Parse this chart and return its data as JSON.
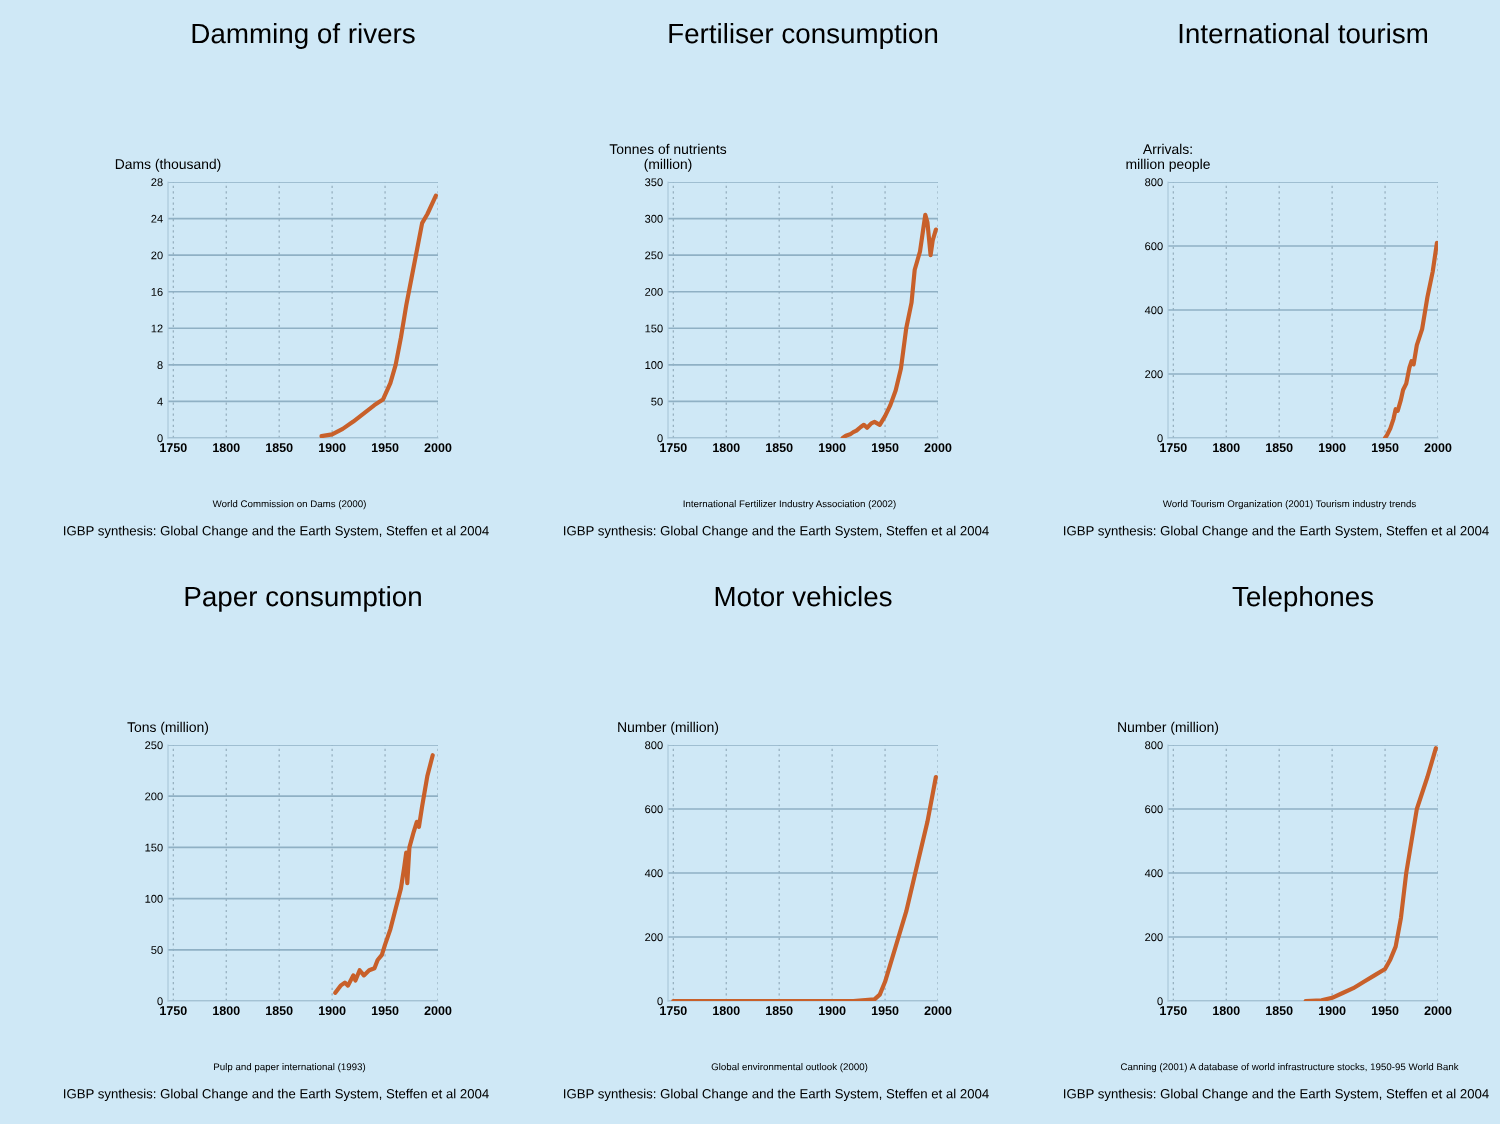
{
  "chart_data": [
    {
      "type": "line",
      "title": "Damming of rivers",
      "ylabel": "Dams (thousand)",
      "x": [
        1890,
        1900,
        1910,
        1920,
        1930,
        1940,
        1948,
        1955,
        1960,
        1965,
        1970,
        1975,
        1980,
        1985,
        1990,
        1998
      ],
      "series": [
        {
          "color": "#c8602a",
          "values": [
            0.2,
            0.4,
            1,
            1.8,
            2.7,
            3.6,
            4.2,
            6,
            8,
            11,
            14.5,
            17.5,
            20.5,
            23.5,
            24.5,
            26.5
          ]
        }
      ],
      "xlim": [
        1745,
        2000
      ],
      "xticks": [
        1750,
        1800,
        1850,
        1900,
        1950,
        2000
      ],
      "ylim": [
        0,
        28
      ],
      "yticks": [
        0,
        4,
        8,
        12,
        16,
        20,
        24,
        28
      ],
      "grid": true,
      "annotations": [
        "World Commission on Dams (2000)",
        "IGBP synthesis: Global Change and the Earth System, Steffen et al 2004"
      ]
    },
    {
      "type": "line",
      "title": "Fertiliser consumption",
      "ylabel": "Tonnes of nutrients\n(million)",
      "x": [
        1910,
        1913,
        1917,
        1920,
        1923,
        1927,
        1930,
        1933,
        1937,
        1940,
        1945,
        1950,
        1955,
        1960,
        1965,
        1970,
        1975,
        1978,
        1980,
        1983,
        1985,
        1988,
        1990,
        1993,
        1995,
        1998
      ],
      "series": [
        {
          "color": "#c8602a",
          "values": [
            0,
            3,
            5,
            8,
            10,
            15,
            18,
            14,
            20,
            22,
            18,
            30,
            45,
            65,
            95,
            150,
            185,
            230,
            240,
            255,
            275,
            305,
            295,
            250,
            270,
            285
          ]
        }
      ],
      "xlim": [
        1745,
        2000
      ],
      "xticks": [
        1750,
        1800,
        1850,
        1900,
        1950,
        2000
      ],
      "ylim": [
        0,
        350
      ],
      "yticks": [
        0,
        50,
        100,
        150,
        200,
        250,
        300,
        350
      ],
      "grid": true,
      "annotations": [
        "International Fertilizer Industry Association (2002)",
        "IGBP synthesis: Global Change and the Earth System, Steffen et al 2004"
      ]
    },
    {
      "type": "line",
      "title": "International tourism",
      "ylabel": "Arrivals:\nmillion people",
      "x": [
        1950,
        1952,
        1955,
        1958,
        1960,
        1962,
        1965,
        1967,
        1970,
        1973,
        1975,
        1977,
        1980,
        1985,
        1990,
        1995,
        1999
      ],
      "series": [
        {
          "color": "#c8602a",
          "values": [
            0,
            10,
            30,
            60,
            90,
            85,
            120,
            150,
            170,
            220,
            240,
            230,
            290,
            340,
            440,
            520,
            610
          ]
        }
      ],
      "xlim": [
        1745,
        2000
      ],
      "xticks": [
        1750,
        1800,
        1850,
        1900,
        1950,
        2000
      ],
      "ylim": [
        0,
        800
      ],
      "yticks": [
        0,
        200,
        400,
        600,
        800
      ],
      "grid": true,
      "annotations": [
        "World Tourism Organization (2001) Tourism industry trends",
        "IGBP synthesis: Global Change and the Earth System, Steffen et al 2004"
      ]
    },
    {
      "type": "line",
      "title": "Paper consumption",
      "ylabel": "Tons (million)",
      "x": [
        1903,
        1908,
        1912,
        1915,
        1920,
        1922,
        1926,
        1930,
        1935,
        1940,
        1943,
        1947,
        1950,
        1955,
        1960,
        1965,
        1968,
        1970,
        1971,
        1973,
        1977,
        1980,
        1982,
        1985,
        1990,
        1995
      ],
      "series": [
        {
          "color": "#c8602a",
          "values": [
            8,
            15,
            18,
            15,
            25,
            20,
            30,
            25,
            30,
            32,
            40,
            45,
            55,
            70,
            90,
            110,
            130,
            145,
            115,
            150,
            165,
            175,
            170,
            190,
            220,
            240
          ]
        }
      ],
      "xlim": [
        1745,
        2000
      ],
      "xticks": [
        1750,
        1800,
        1850,
        1900,
        1950,
        2000
      ],
      "ylim": [
        0,
        250
      ],
      "yticks": [
        0,
        50,
        100,
        150,
        200,
        250
      ],
      "grid": true,
      "annotations": [
        "Pulp and paper international (1993)",
        "IGBP synthesis: Global Change and the Earth System, Steffen et al 2004"
      ]
    },
    {
      "type": "line",
      "title": "Motor vehicles",
      "ylabel": "Number (million)",
      "x": [
        1750,
        1800,
        1850,
        1900,
        1920,
        1940,
        1945,
        1950,
        1960,
        1970,
        1980,
        1990,
        1998
      ],
      "series": [
        {
          "color": "#c8602a",
          "values": [
            0,
            0,
            0,
            0,
            0,
            5,
            20,
            60,
            170,
            280,
            420,
            560,
            700
          ]
        }
      ],
      "xlim": [
        1745,
        2000
      ],
      "xticks": [
        1750,
        1800,
        1850,
        1900,
        1950,
        2000
      ],
      "ylim": [
        0,
        800
      ],
      "yticks": [
        0,
        200,
        400,
        600,
        800
      ],
      "grid": true,
      "annotations": [
        "Global environmental outlook (2000)",
        "IGBP synthesis: Global Change and the Earth System, Steffen et al 2004"
      ]
    },
    {
      "type": "line",
      "title": "Telephones",
      "ylabel": "Number (million)",
      "x": [
        1875,
        1890,
        1900,
        1910,
        1920,
        1930,
        1940,
        1950,
        1955,
        1960,
        1965,
        1970,
        1975,
        1980,
        1990,
        1998
      ],
      "series": [
        {
          "color": "#c8602a",
          "values": [
            0,
            2,
            10,
            25,
            40,
            60,
            80,
            100,
            130,
            170,
            260,
            400,
            500,
            600,
            700,
            790
          ]
        }
      ],
      "xlim": [
        1745,
        2000
      ],
      "xticks": [
        1750,
        1800,
        1850,
        1900,
        1950,
        2000
      ],
      "ylim": [
        0,
        800
      ],
      "yticks": [
        0,
        200,
        400,
        600,
        800
      ],
      "grid": true,
      "annotations": [
        "Canning (2001) A database of world infrastructure stocks, 1950-95 World Bank",
        "IGBP synthesis: Global Change and the Earth System, Steffen et al 2004"
      ]
    }
  ]
}
